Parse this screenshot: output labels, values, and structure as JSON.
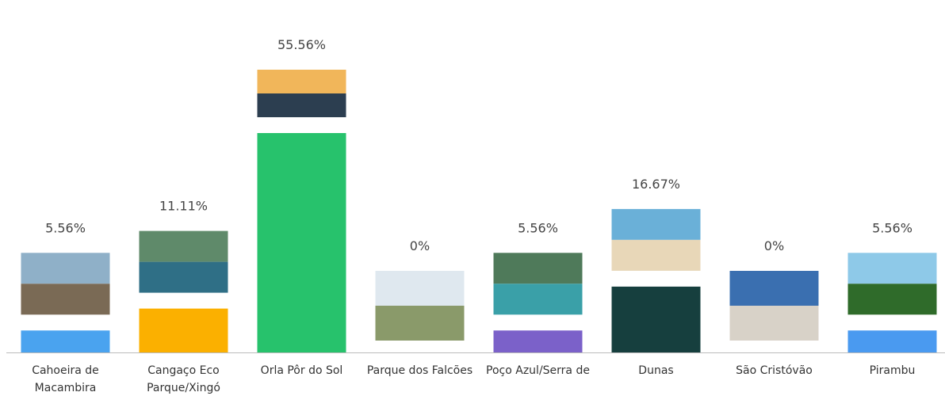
{
  "chart_data": {
    "type": "bar",
    "categories": [
      "Cahoeira de Macambira",
      "Cangaço Eco Parque/Xingó",
      "Orla Pôr do Sol",
      "Parque dos Falcões",
      "Poço Azul/Serra de",
      "Dunas",
      "São Cristóvão",
      "Pirambu"
    ],
    "values": [
      5.56,
      11.11,
      55.56,
      0,
      5.56,
      16.67,
      0,
      5.56
    ],
    "value_labels": [
      "5.56%",
      "11.11%",
      "55.56%",
      "0%",
      "5.56%",
      "16.67%",
      "0%",
      "5.56%"
    ],
    "colors": [
      "#4aa3ef",
      "#fbb000",
      "#27c26c",
      "#9aa0a6",
      "#7b61c9",
      "#163f3e",
      "#9aa0a6",
      "#4a9af0"
    ]
  }
}
